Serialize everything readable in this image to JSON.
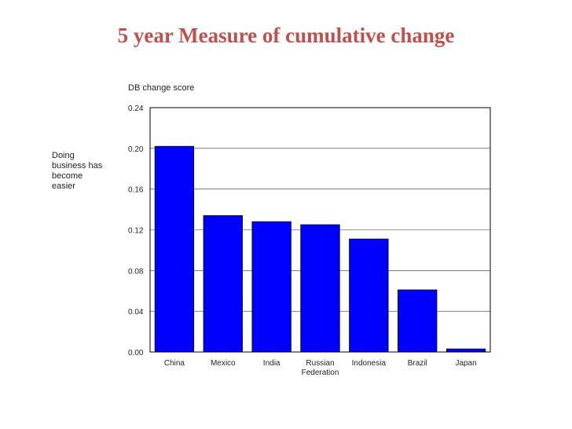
{
  "slide": {
    "title": "5 year Measure of cumulative change"
  },
  "chart_data": {
    "type": "bar",
    "title": "",
    "ylabel": "DB change score",
    "xlabel": "",
    "side_note": [
      "Doing",
      "business has",
      "become",
      "easier"
    ],
    "categories": [
      [
        "China"
      ],
      [
        "Mexico"
      ],
      [
        "India"
      ],
      [
        "Russian",
        "Federation"
      ],
      [
        "Indonesia"
      ],
      [
        "Brazil"
      ],
      [
        "Japan"
      ]
    ],
    "values": [
      0.202,
      0.134,
      0.128,
      0.125,
      0.111,
      0.061,
      0.003
    ],
    "ylim": [
      0,
      0.24
    ],
    "yticks": [
      "0.00",
      "0.04",
      "0.08",
      "0.12",
      "0.16",
      "0.20",
      "0.24"
    ],
    "grid": true,
    "bar_color": "#0000ff"
  }
}
